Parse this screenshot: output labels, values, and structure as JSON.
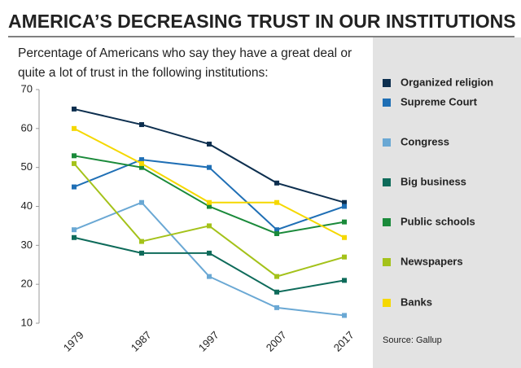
{
  "chart_data": {
    "type": "line",
    "title": "AMERICA’S DECREASING TRUST IN OUR INSTITUTIONS",
    "subtitle": [
      "Percentage of Americans who say they have a great deal or",
      "quite a lot of trust in the following institutions:"
    ],
    "source": "Source: Gallup",
    "categories": [
      "1979",
      "1987",
      "1997",
      "2007",
      "2017"
    ],
    "series": [
      {
        "name": "Organized religion",
        "color": "#0d2f4f",
        "values": [
          65,
          61,
          56,
          46,
          41
        ]
      },
      {
        "name": "Supreme Court",
        "color": "#1f6fb5",
        "values": [
          45,
          52,
          50,
          34,
          40
        ]
      },
      {
        "name": "Congress",
        "color": "#6aa8d4",
        "values": [
          34,
          41,
          22,
          14,
          12
        ]
      },
      {
        "name": "Big business",
        "color": "#0e6b5a",
        "values": [
          32,
          28,
          28,
          18,
          21
        ]
      },
      {
        "name": "Public schools",
        "color": "#1a8a3a",
        "values": [
          53,
          50,
          40,
          33,
          36
        ]
      },
      {
        "name": "Newspapers",
        "color": "#a4c21a",
        "values": [
          51,
          31,
          35,
          22,
          27
        ]
      },
      {
        "name": "Banks",
        "color": "#f5d800",
        "values": [
          60,
          51,
          41,
          41,
          32
        ]
      }
    ],
    "ylim": [
      10,
      70
    ],
    "yticks": [
      10,
      20,
      30,
      40,
      50,
      60,
      70
    ],
    "legend": "right"
  }
}
